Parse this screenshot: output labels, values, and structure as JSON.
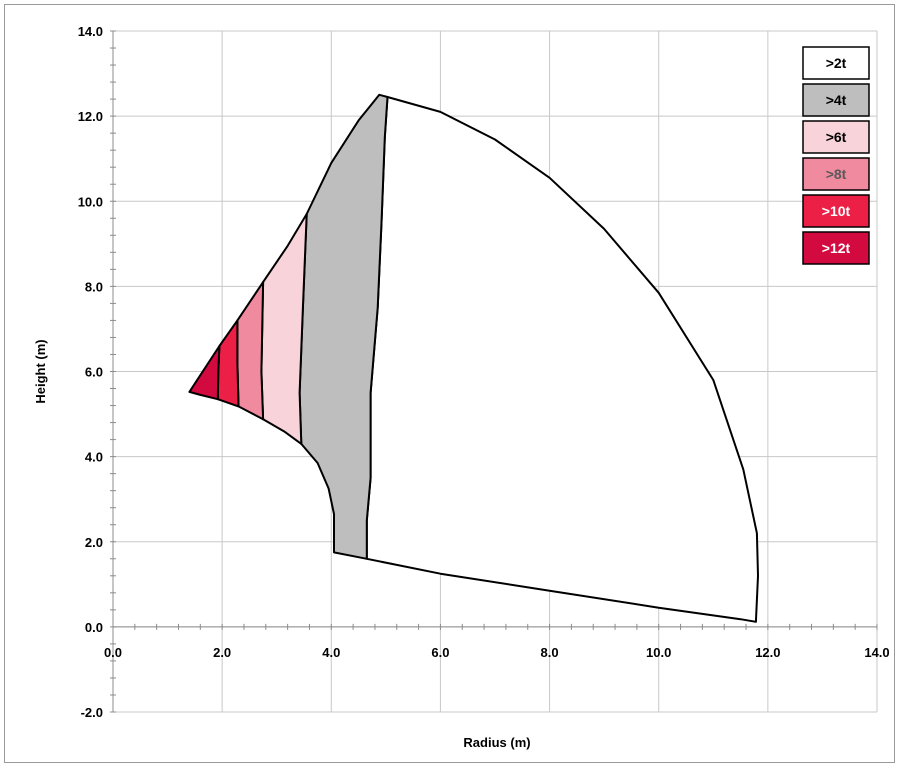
{
  "chart_data": {
    "type": "area",
    "title": "",
    "xlabel": "Radius (m)",
    "ylabel": "Height (m)",
    "xlim": [
      0.0,
      14.0
    ],
    "ylim": [
      -2.0,
      14.0
    ],
    "x_ticks": [
      "0.0",
      "2.0",
      "4.0",
      "6.0",
      "8.0",
      "10.0",
      "12.0",
      "14.0"
    ],
    "y_ticks": [
      "-2.0",
      "0.0",
      "2.0",
      "4.0",
      "6.0",
      "8.0",
      "10.0",
      "12.0",
      "14.0"
    ],
    "grid": true,
    "legend_placement": "top-right",
    "series": [
      {
        "name": ">2t",
        "color": "#ffffff",
        "text_color": "#000000",
        "points": [
          [
            5.03,
            12.45
          ],
          [
            6.0,
            12.1
          ],
          [
            7.0,
            11.45
          ],
          [
            8.0,
            10.55
          ],
          [
            9.0,
            9.35
          ],
          [
            10.0,
            7.85
          ],
          [
            11.0,
            5.8
          ],
          [
            11.55,
            3.7
          ],
          [
            11.8,
            2.2
          ],
          [
            11.82,
            1.2
          ],
          [
            11.78,
            0.12
          ],
          [
            11.5,
            0.18
          ],
          [
            10.0,
            0.45
          ],
          [
            8.0,
            0.85
          ],
          [
            6.0,
            1.25
          ],
          [
            4.65,
            1.6
          ],
          [
            4.65,
            2.5
          ],
          [
            4.72,
            3.5
          ],
          [
            4.72,
            5.5
          ],
          [
            4.85,
            7.5
          ],
          [
            4.92,
            9.5
          ],
          [
            4.98,
            11.5
          ],
          [
            5.03,
            12.45
          ]
        ]
      },
      {
        "name": ">4t",
        "color": "#bebebe",
        "text_color": "#000000",
        "points": [
          [
            3.55,
            9.7
          ],
          [
            4.0,
            10.9
          ],
          [
            4.5,
            11.9
          ],
          [
            4.88,
            12.5
          ],
          [
            5.03,
            12.45
          ],
          [
            4.98,
            11.5
          ],
          [
            4.92,
            9.5
          ],
          [
            4.85,
            7.5
          ],
          [
            4.72,
            5.5
          ],
          [
            4.72,
            3.5
          ],
          [
            4.65,
            2.5
          ],
          [
            4.65,
            1.6
          ],
          [
            4.05,
            1.75
          ],
          [
            4.05,
            2.65
          ],
          [
            3.95,
            3.25
          ],
          [
            3.75,
            3.85
          ],
          [
            3.45,
            4.3
          ],
          [
            3.42,
            5.5
          ],
          [
            3.48,
            7.5
          ],
          [
            3.55,
            9.7
          ]
        ]
      },
      {
        "name": ">6t",
        "color": "#f8d3da",
        "text_color": "#000000",
        "points": [
          [
            2.75,
            8.1
          ],
          [
            3.2,
            8.95
          ],
          [
            3.55,
            9.7
          ],
          [
            3.48,
            7.5
          ],
          [
            3.42,
            5.5
          ],
          [
            3.45,
            4.3
          ],
          [
            3.15,
            4.58
          ],
          [
            2.75,
            4.88
          ],
          [
            2.72,
            6.0
          ],
          [
            2.75,
            8.1
          ]
        ]
      },
      {
        "name": ">8t",
        "color": "#f08a9e",
        "text_color": "#5a5a5a",
        "points": [
          [
            2.28,
            7.2
          ],
          [
            2.75,
            8.1
          ],
          [
            2.72,
            6.0
          ],
          [
            2.75,
            4.88
          ],
          [
            2.3,
            5.18
          ],
          [
            2.28,
            6.2
          ],
          [
            2.28,
            7.2
          ]
        ]
      },
      {
        "name": ">10t",
        "color": "#ec1f47",
        "text_color": "#ffffff",
        "points": [
          [
            1.95,
            6.6
          ],
          [
            2.28,
            7.2
          ],
          [
            2.28,
            6.2
          ],
          [
            2.3,
            5.18
          ],
          [
            1.92,
            5.35
          ],
          [
            1.93,
            6.0
          ],
          [
            1.95,
            6.6
          ]
        ]
      },
      {
        "name": ">12t",
        "color": "#d20a40",
        "text_color": "#ffffff",
        "points": [
          [
            1.4,
            5.52
          ],
          [
            1.95,
            6.6
          ],
          [
            1.93,
            6.0
          ],
          [
            1.92,
            5.35
          ],
          [
            1.6,
            5.45
          ],
          [
            1.4,
            5.52
          ]
        ]
      }
    ]
  }
}
